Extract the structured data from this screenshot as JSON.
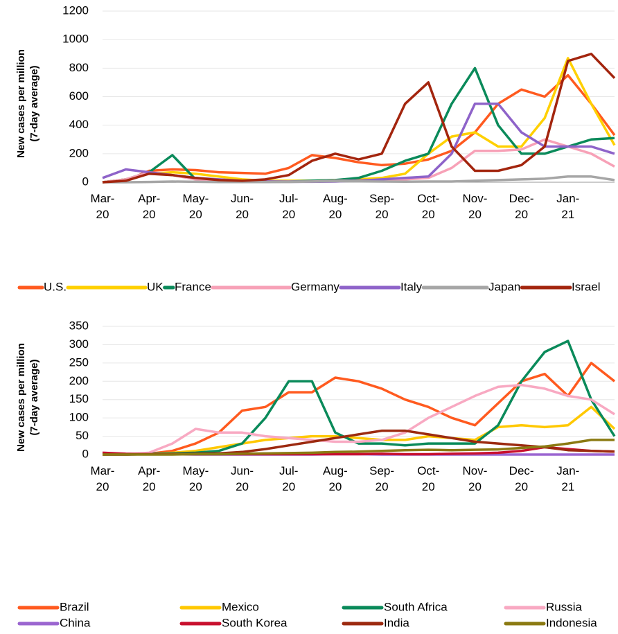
{
  "chart_data": [
    {
      "type": "line",
      "ylabel": [
        "New cases per million",
        "(7-day average)"
      ],
      "categories": [
        "Mar-20",
        null,
        "Apr-20",
        null,
        "May-20",
        null,
        "Jun-20",
        null,
        "Jul-20",
        null,
        "Aug-20",
        null,
        "Sep-20",
        null,
        "Oct-20",
        null,
        "Nov-20",
        null,
        "Dec-20",
        null,
        "Jan-21",
        null,
        null
      ],
      "ylim": [
        0,
        1200
      ],
      "yticks": [
        0,
        200,
        400,
        600,
        800,
        1000,
        1200
      ],
      "grid": true,
      "series": [
        {
          "name": "U.S.",
          "color": "#ff5a1f",
          "values": [
            0,
            10,
            80,
            90,
            85,
            70,
            65,
            60,
            100,
            190,
            170,
            140,
            120,
            130,
            160,
            220,
            350,
            550,
            650,
            600,
            750,
            550,
            330
          ]
        },
        {
          "name": "UK",
          "color": "#ffd000",
          "values": [
            0,
            20,
            60,
            70,
            60,
            40,
            20,
            10,
            10,
            10,
            15,
            20,
            30,
            60,
            200,
            320,
            350,
            250,
            250,
            450,
            870,
            550,
            260
          ]
        },
        {
          "name": "France",
          "color": "#0a8a5a",
          "values": [
            0,
            20,
            70,
            190,
            20,
            10,
            5,
            5,
            5,
            10,
            15,
            30,
            80,
            150,
            200,
            550,
            800,
            400,
            200,
            200,
            250,
            300,
            310
          ]
        },
        {
          "name": "Germany",
          "color": "#f7a1b7",
          "values": [
            0,
            20,
            70,
            50,
            20,
            10,
            5,
            5,
            5,
            5,
            10,
            10,
            15,
            20,
            30,
            100,
            220,
            220,
            230,
            300,
            250,
            200,
            110
          ]
        },
        {
          "name": "Italy",
          "color": "#8e63c9",
          "values": [
            30,
            90,
            70,
            50,
            30,
            20,
            10,
            5,
            3,
            3,
            5,
            10,
            20,
            30,
            40,
            200,
            550,
            550,
            350,
            250,
            250,
            250,
            200
          ]
        },
        {
          "name": "Japan",
          "color": "#a6a6a6",
          "values": [
            0,
            0,
            2,
            5,
            3,
            1,
            1,
            1,
            2,
            5,
            8,
            6,
            5,
            4,
            5,
            5,
            10,
            15,
            20,
            25,
            40,
            40,
            15
          ]
        },
        {
          "name": "Israel",
          "color": "#a3250e",
          "values": [
            0,
            10,
            60,
            50,
            30,
            15,
            10,
            20,
            50,
            150,
            200,
            160,
            200,
            550,
            700,
            250,
            80,
            80,
            120,
            250,
            850,
            900,
            730
          ]
        }
      ]
    },
    {
      "type": "line",
      "ylabel": [
        "New cases per million",
        "(7-day average)"
      ],
      "categories": [
        "Mar-20",
        null,
        "Apr-20",
        null,
        "May-20",
        null,
        "Jun-20",
        null,
        "Jul-20",
        null,
        "Aug-20",
        null,
        "Sep-20",
        null,
        "Oct-20",
        null,
        "Nov-20",
        null,
        "Dec-20",
        null,
        "Jan-21",
        null,
        null
      ],
      "ylim": [
        0,
        350
      ],
      "yticks": [
        0,
        50,
        100,
        150,
        200,
        250,
        300,
        350
      ],
      "grid": true,
      "series": [
        {
          "name": "Brazil",
          "color": "#ff5a1f",
          "values": [
            0,
            0,
            2,
            10,
            30,
            60,
            120,
            130,
            170,
            170,
            210,
            200,
            180,
            150,
            130,
            100,
            80,
            140,
            200,
            220,
            160,
            250,
            200
          ]
        },
        {
          "name": "Mexico",
          "color": "#ffc800",
          "values": [
            0,
            0,
            2,
            5,
            10,
            20,
            30,
            40,
            45,
            50,
            50,
            45,
            40,
            40,
            50,
            45,
            40,
            75,
            80,
            75,
            80,
            130,
            70
          ]
        },
        {
          "name": "South Africa",
          "color": "#0a8a5a",
          "values": [
            0,
            0,
            2,
            3,
            5,
            10,
            30,
            100,
            200,
            200,
            60,
            30,
            30,
            25,
            30,
            30,
            30,
            80,
            200,
            280,
            310,
            150,
            50
          ]
        },
        {
          "name": "Russia",
          "color": "#f8a9c2",
          "values": [
            0,
            0,
            5,
            30,
            70,
            60,
            60,
            50,
            45,
            40,
            35,
            35,
            40,
            60,
            100,
            130,
            160,
            185,
            190,
            180,
            160,
            150,
            110
          ]
        },
        {
          "name": "China",
          "color": "#9b66d0",
          "values": [
            0,
            0,
            1,
            1,
            0,
            0,
            0,
            0,
            0,
            0,
            1,
            1,
            0,
            0,
            0,
            0,
            0,
            0,
            0,
            0,
            0,
            0,
            0
          ]
        },
        {
          "name": "South Korea",
          "color": "#c8102e",
          "values": [
            5,
            2,
            1,
            1,
            1,
            1,
            1,
            1,
            1,
            1,
            1,
            1,
            2,
            1,
            1,
            2,
            3,
            5,
            10,
            20,
            15,
            10,
            8
          ]
        },
        {
          "name": "India",
          "color": "#9c2a10",
          "values": [
            0,
            0,
            1,
            1,
            2,
            3,
            7,
            15,
            25,
            35,
            45,
            55,
            65,
            65,
            55,
            45,
            35,
            30,
            25,
            20,
            12,
            10,
            8
          ]
        },
        {
          "name": "Indonesia",
          "color": "#8b7a12",
          "values": [
            0,
            0,
            0,
            0,
            1,
            1,
            2,
            3,
            4,
            5,
            7,
            8,
            10,
            12,
            13,
            12,
            13,
            14,
            18,
            22,
            30,
            40,
            40
          ]
        }
      ]
    }
  ]
}
